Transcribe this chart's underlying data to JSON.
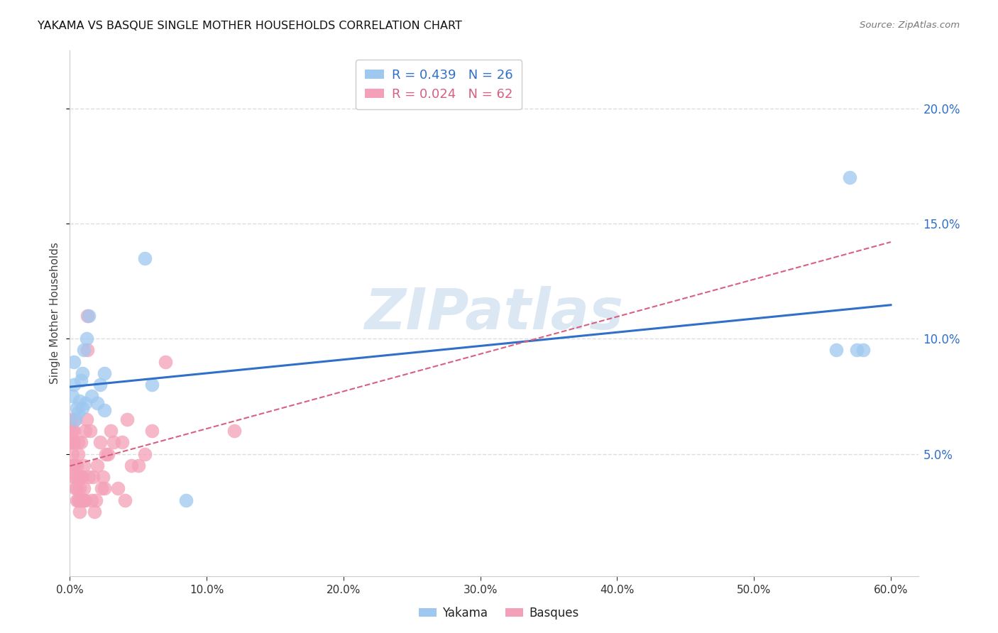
{
  "title": "YAKAMA VS BASQUE SINGLE MOTHER HOUSEHOLDS CORRELATION CHART",
  "source": "Source: ZipAtlas.com",
  "ylabel": "Single Mother Households",
  "legend_yakama_r": "R = 0.439",
  "legend_yakama_n": "N = 26",
  "legend_basque_r": "R = 0.024",
  "legend_basque_n": "N = 62",
  "yakama_color": "#9EC8F0",
  "basque_color": "#F4A0B8",
  "regression_yakama_color": "#3070C8",
  "regression_basque_color": "#D86080",
  "watermark_color": "#C5D8EE",
  "xlim": [
    0.0,
    0.62
  ],
  "ylim": [
    -0.003,
    0.225
  ],
  "yticks": [
    0.05,
    0.1,
    0.15,
    0.2
  ],
  "xticks": [
    0.0,
    0.1,
    0.2,
    0.3,
    0.4,
    0.5,
    0.6
  ],
  "yakama_x": [
    0.002,
    0.003,
    0.003,
    0.004,
    0.005,
    0.006,
    0.007,
    0.008,
    0.009,
    0.01,
    0.012,
    0.014,
    0.016,
    0.02,
    0.022,
    0.025,
    0.055,
    0.06,
    0.085,
    0.56,
    0.57,
    0.575,
    0.58,
    0.025,
    0.009,
    0.011
  ],
  "yakama_y": [
    0.075,
    0.08,
    0.09,
    0.065,
    0.07,
    0.068,
    0.073,
    0.082,
    0.085,
    0.095,
    0.1,
    0.11,
    0.075,
    0.072,
    0.08,
    0.085,
    0.135,
    0.08,
    0.03,
    0.095,
    0.17,
    0.095,
    0.095,
    0.069,
    0.07,
    0.072
  ],
  "basque_x": [
    0.001,
    0.001,
    0.001,
    0.002,
    0.002,
    0.002,
    0.002,
    0.003,
    0.003,
    0.003,
    0.003,
    0.004,
    0.004,
    0.004,
    0.005,
    0.005,
    0.005,
    0.006,
    0.006,
    0.006,
    0.006,
    0.007,
    0.007,
    0.007,
    0.008,
    0.008,
    0.008,
    0.009,
    0.009,
    0.01,
    0.01,
    0.01,
    0.011,
    0.011,
    0.012,
    0.013,
    0.013,
    0.014,
    0.015,
    0.016,
    0.017,
    0.018,
    0.019,
    0.02,
    0.022,
    0.023,
    0.024,
    0.025,
    0.026,
    0.028,
    0.03,
    0.032,
    0.035,
    0.038,
    0.04,
    0.042,
    0.045,
    0.05,
    0.055,
    0.06,
    0.07,
    0.12
  ],
  "basque_y": [
    0.06,
    0.055,
    0.065,
    0.055,
    0.06,
    0.045,
    0.05,
    0.04,
    0.045,
    0.055,
    0.06,
    0.035,
    0.04,
    0.065,
    0.03,
    0.035,
    0.045,
    0.03,
    0.04,
    0.05,
    0.055,
    0.025,
    0.035,
    0.03,
    0.03,
    0.04,
    0.055,
    0.03,
    0.04,
    0.03,
    0.035,
    0.045,
    0.03,
    0.06,
    0.065,
    0.095,
    0.11,
    0.04,
    0.06,
    0.03,
    0.04,
    0.025,
    0.03,
    0.045,
    0.055,
    0.035,
    0.04,
    0.035,
    0.05,
    0.05,
    0.06,
    0.055,
    0.035,
    0.055,
    0.03,
    0.065,
    0.045,
    0.045,
    0.05,
    0.06,
    0.09,
    0.06
  ],
  "grid_color": "#DDDDDD",
  "bg_color": "#FFFFFF"
}
